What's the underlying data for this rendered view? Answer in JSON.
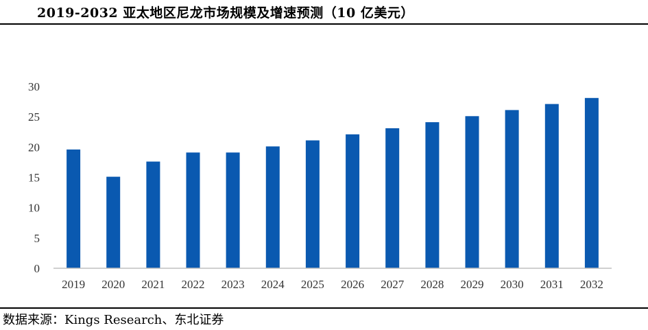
{
  "title": "2019-2032 亚太地区尼龙市场规模及增速预测（10 亿美元）",
  "source": "数据来源：Kings Research、东北证券",
  "chart_data": {
    "type": "bar",
    "categories": [
      "2019",
      "2020",
      "2021",
      "2022",
      "2023",
      "2024",
      "2025",
      "2026",
      "2027",
      "2028",
      "2029",
      "2030",
      "2031",
      "2032"
    ],
    "values": [
      19.6,
      15.1,
      17.6,
      19.1,
      19.1,
      20.1,
      21.1,
      22.1,
      23.1,
      24.1,
      25.1,
      26.1,
      27.1,
      28.1
    ],
    "ylim": [
      0,
      30
    ],
    "yticks": [
      0,
      5,
      10,
      15,
      20,
      25,
      30
    ],
    "grid": false,
    "legend": "none",
    "bar_color": "#0a59b0",
    "axis_color": "#bfbfbf"
  }
}
